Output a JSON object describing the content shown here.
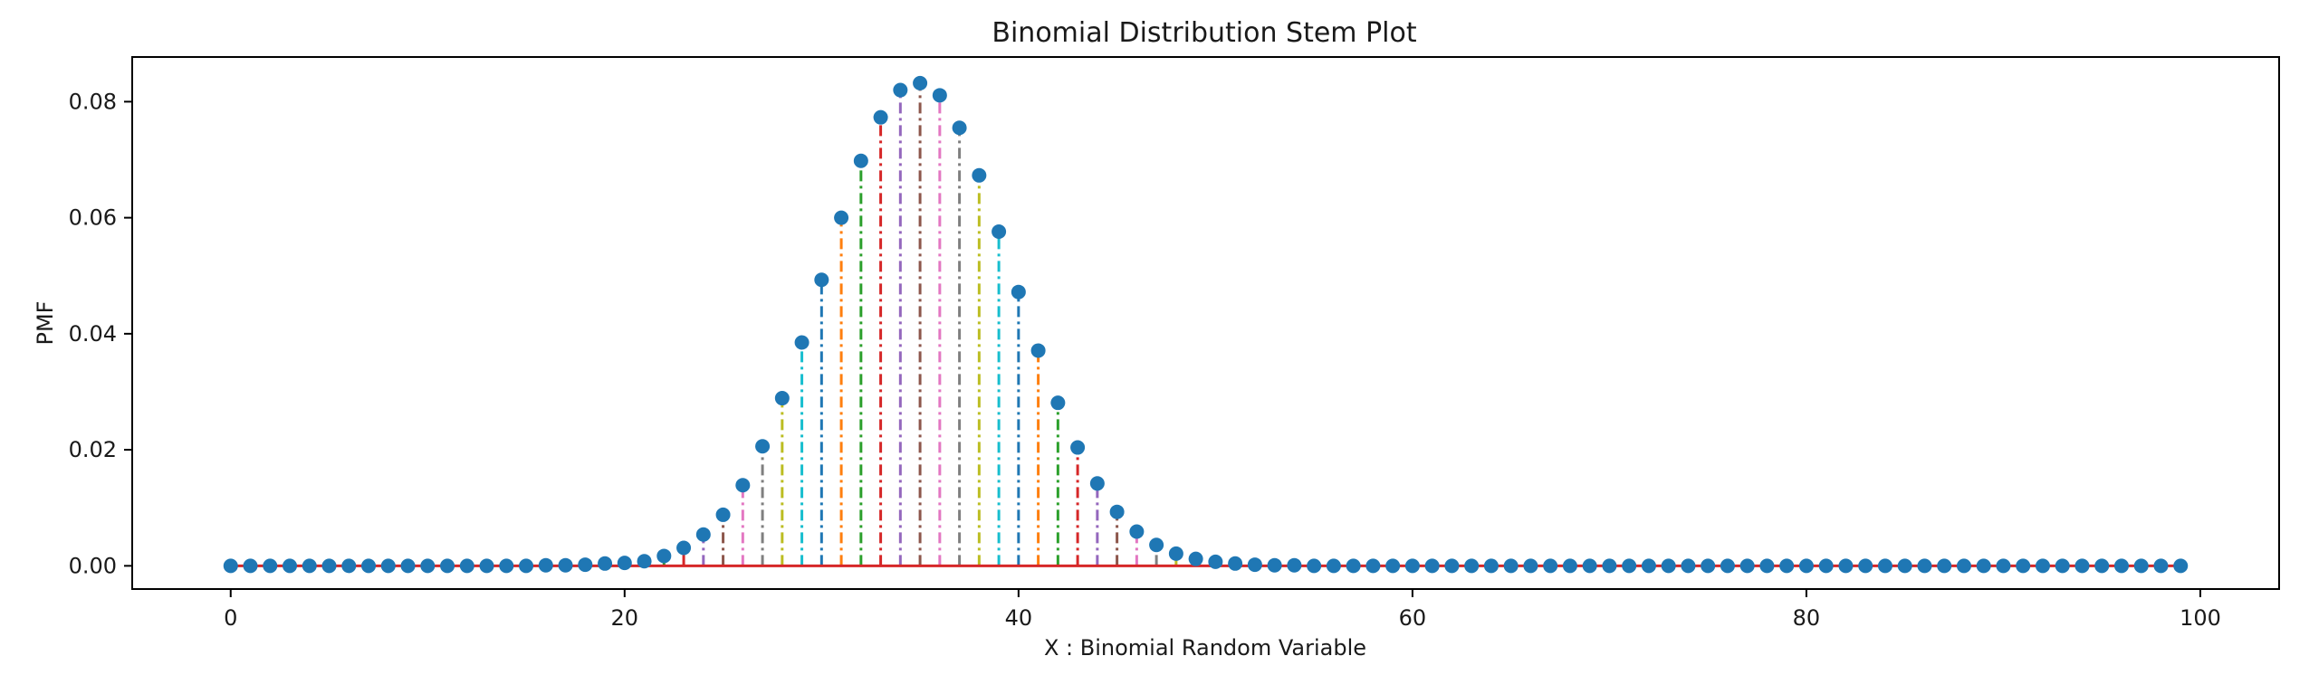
{
  "chart_data": {
    "type": "stem",
    "title": "Binomial Distribution Stem Plot",
    "xlabel": "X : Binomial Random Variable",
    "ylabel": "PMF",
    "xlim": [
      -5,
      104
    ],
    "ylim": [
      -0.004,
      0.0877
    ],
    "xticks": [
      0,
      20,
      40,
      60,
      80,
      100
    ],
    "yticks": [
      0.0,
      0.02,
      0.04,
      0.06,
      0.08
    ],
    "xtick_labels": [
      "0",
      "20",
      "40",
      "60",
      "80",
      "100"
    ],
    "ytick_labels": [
      "0.00",
      "0.02",
      "0.04",
      "0.06",
      "0.08"
    ],
    "grid": false,
    "legend": "none",
    "baseline": 0,
    "baseline_color": "#d62728",
    "marker_color": "#1f77b4",
    "stem_linestyle": "dashdot",
    "stem_colors": [
      "#1f77b4",
      "#ff7f0e",
      "#2ca02c",
      "#d62728",
      "#9467bd",
      "#8c564b",
      "#e377c2",
      "#7f7f7f",
      "#bcbd22",
      "#17becf"
    ],
    "x": [
      0,
      1,
      2,
      3,
      4,
      5,
      6,
      7,
      8,
      9,
      10,
      11,
      12,
      13,
      14,
      15,
      16,
      17,
      18,
      19,
      20,
      21,
      22,
      23,
      24,
      25,
      26,
      27,
      28,
      29,
      30,
      31,
      32,
      33,
      34,
      35,
      36,
      37,
      38,
      39,
      40,
      41,
      42,
      43,
      44,
      45,
      46,
      47,
      48,
      49,
      50,
      51,
      52,
      53,
      54,
      55,
      56,
      57,
      58,
      59,
      60,
      61,
      62,
      63,
      64,
      65,
      66,
      67,
      68,
      69,
      70,
      71,
      72,
      73,
      74,
      75,
      76,
      77,
      78,
      79,
      80,
      81,
      82,
      83,
      84,
      85,
      86,
      87,
      88,
      89,
      90,
      91,
      92,
      93,
      94,
      95,
      96,
      97,
      98,
      99
    ],
    "values": [
      0,
      0,
      0,
      0,
      0,
      0,
      0,
      0,
      0,
      0,
      0,
      0,
      0,
      0,
      0,
      0,
      0.0001,
      0.0001,
      0.0002,
      0.0004,
      0.0005,
      0.0008,
      0.0017,
      0.0031,
      0.0054,
      0.0088,
      0.0139,
      0.0206,
      0.0289,
      0.0385,
      0.0493,
      0.06,
      0.0698,
      0.0773,
      0.082,
      0.0832,
      0.0811,
      0.0755,
      0.0673,
      0.0576,
      0.0472,
      0.0371,
      0.0281,
      0.0204,
      0.0142,
      0.0093,
      0.0059,
      0.0036,
      0.0021,
      0.0012,
      0.0007,
      0.0004,
      0.0002,
      0.0001,
      0.0001,
      0,
      0,
      0,
      0,
      0,
      0,
      0,
      0,
      0,
      0,
      0,
      0,
      0,
      0,
      0,
      0,
      0,
      0,
      0,
      0,
      0,
      0,
      0,
      0,
      0,
      0,
      0,
      0,
      0,
      0,
      0,
      0,
      0,
      0,
      0,
      0,
      0,
      0,
      0,
      0,
      0,
      0,
      0,
      0,
      0
    ]
  }
}
